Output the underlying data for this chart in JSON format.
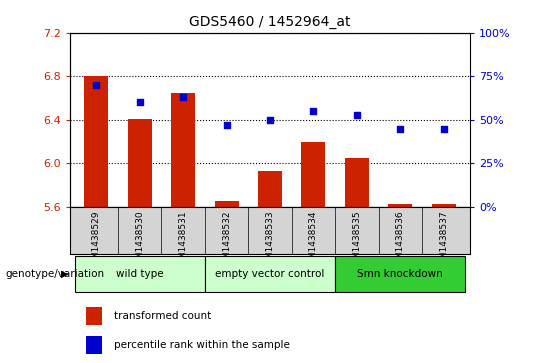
{
  "title": "GDS5460 / 1452964_at",
  "samples": [
    "GSM1438529",
    "GSM1438530",
    "GSM1438531",
    "GSM1438532",
    "GSM1438533",
    "GSM1438534",
    "GSM1438535",
    "GSM1438536",
    "GSM1438537"
  ],
  "transformed_counts": [
    6.8,
    6.41,
    6.65,
    5.65,
    5.93,
    6.2,
    6.05,
    5.63,
    5.63
  ],
  "percentile_ranks": [
    70,
    60,
    63,
    47,
    50,
    55,
    53,
    45,
    45
  ],
  "ylim_left": [
    5.6,
    7.2
  ],
  "ylim_right": [
    0,
    100
  ],
  "yticks_left": [
    5.6,
    6.0,
    6.4,
    6.8,
    7.2
  ],
  "yticks_right": [
    0,
    25,
    50,
    75,
    100
  ],
  "bar_color": "#cc2200",
  "dot_color": "#0000cc",
  "bar_bottom": 5.6,
  "groups": [
    {
      "label": "wild type",
      "start": 0,
      "end": 3,
      "color": "#ccffcc"
    },
    {
      "label": "empty vector control",
      "start": 3,
      "end": 6,
      "color": "#ccffcc"
    },
    {
      "label": "Smn knockdown",
      "start": 6,
      "end": 9,
      "color": "#33cc33"
    }
  ],
  "xlabel_area": "genotype/variation",
  "legend_bar_label": "transformed count",
  "legend_dot_label": "percentile rank within the sample",
  "tick_color_left": "#cc2200",
  "tick_color_right": "#0000cc",
  "sample_bg_color": "#d4d4d4",
  "fig_width": 5.4,
  "fig_height": 3.63,
  "dpi": 100
}
